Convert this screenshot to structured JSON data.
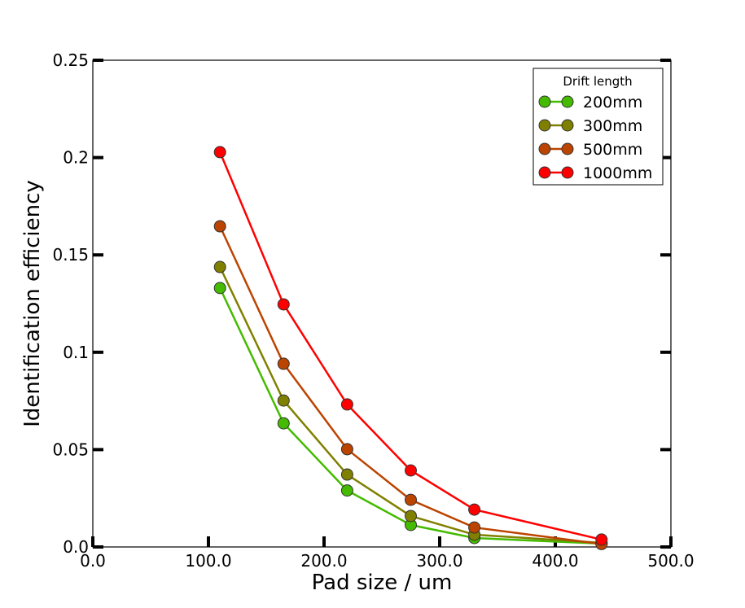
{
  "chart_data": {
    "type": "line",
    "title": "",
    "xlabel": "Pad size / um",
    "ylabel": "Identification efficiency",
    "xlim": [
      0,
      500
    ],
    "ylim": [
      0,
      0.25
    ],
    "xticks": [
      0,
      100,
      200,
      300,
      400,
      500
    ],
    "xtick_labels": [
      "0.0",
      "100.0",
      "200.0",
      "300.0",
      "400.0",
      "500.0"
    ],
    "yticks": [
      0,
      0.05,
      0.1,
      0.15,
      0.2,
      0.25
    ],
    "ytick_labels": [
      "0.0",
      "0.05",
      "0.1",
      "0.15",
      "0.2",
      "0.25"
    ],
    "grid": false,
    "legend": {
      "title": "Drift length",
      "placement": "top-right"
    },
    "x": [
      110,
      165,
      220,
      275,
      330,
      440
    ],
    "series": [
      {
        "name": "200mm",
        "color": "#44bb00",
        "values": [
          0.133,
          0.0635,
          0.029,
          0.0113,
          0.0046,
          0.0017
        ]
      },
      {
        "name": "300mm",
        "color": "#808000",
        "values": [
          0.1438,
          0.0752,
          0.0372,
          0.0159,
          0.0063,
          0.0021
        ]
      },
      {
        "name": "500mm",
        "color": "#bb4400",
        "values": [
          0.1647,
          0.0941,
          0.0502,
          0.0242,
          0.01,
          0.0015
        ]
      },
      {
        "name": "1000mm",
        "color": "#ff0000",
        "values": [
          0.2028,
          0.1246,
          0.0732,
          0.0393,
          0.0192,
          0.0038
        ]
      }
    ]
  }
}
